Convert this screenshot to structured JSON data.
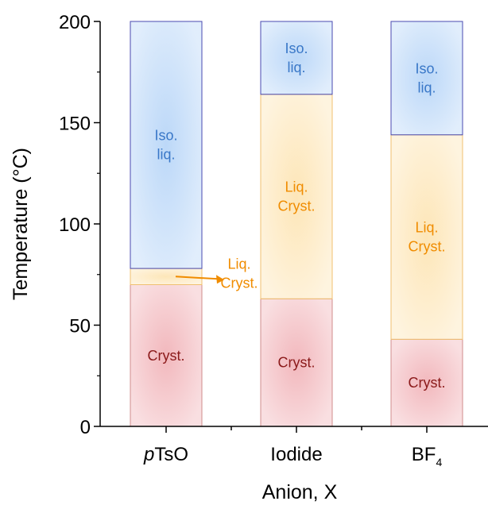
{
  "chart_data": {
    "type": "bar",
    "stacked": true,
    "title": "",
    "xlabel": "Anion, X",
    "ylabel": "Temperature (°C)",
    "ylim": [
      0,
      200
    ],
    "yticks": [
      0,
      50,
      100,
      150,
      200
    ],
    "grid": false,
    "categories": [
      {
        "main": "pTsO",
        "italic_prefix": "p",
        "rest": "TsO",
        "sub": ""
      },
      {
        "main": "Iodide",
        "italic_prefix": "",
        "rest": "Iodide",
        "sub": ""
      },
      {
        "main": "BF4",
        "italic_prefix": "",
        "rest": "BF",
        "sub": "4"
      }
    ],
    "phases": [
      {
        "key": "cryst",
        "label_lines": [
          "Cryst."
        ],
        "fill": "#f2b8bd",
        "text_color": "#8b1a1a",
        "edge": "#d08c8c"
      },
      {
        "key": "lc",
        "label_lines": [
          "Liq.",
          "Cryst."
        ],
        "fill": "#fde6b8",
        "text_color": "#f08c00",
        "edge": "#f0c070"
      },
      {
        "key": "iso",
        "label_lines": [
          "Iso.",
          "liq."
        ],
        "fill": "#bcd8f8",
        "text_color": "#3a78c8",
        "edge": "#4a4ab0"
      }
    ],
    "series": [
      {
        "name": "Cryst.",
        "values": [
          70,
          63,
          43
        ]
      },
      {
        "name": "Liq. Cryst.",
        "values": [
          8,
          101,
          101
        ]
      },
      {
        "name": "Iso. liq.",
        "values": [
          122,
          36,
          56
        ]
      }
    ],
    "boundaries": [
      {
        "cryst_to_lc": 70,
        "lc_to_iso": 78
      },
      {
        "cryst_to_lc": 63,
        "lc_to_iso": 164
      },
      {
        "cryst_to_lc": 43,
        "lc_to_iso": 144
      }
    ],
    "annotation": {
      "category_index": 0,
      "lines": [
        "Liq.",
        "Cryst."
      ],
      "arrow": true
    }
  }
}
